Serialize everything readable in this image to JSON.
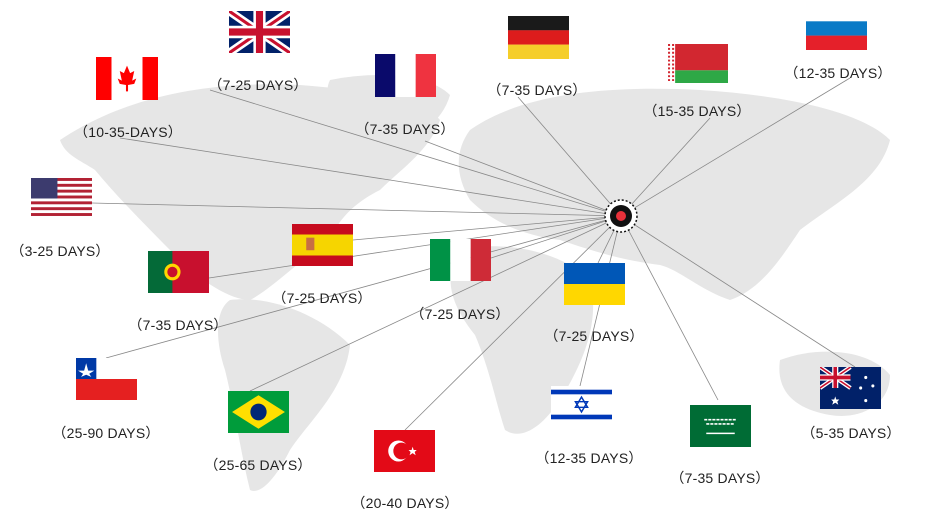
{
  "hub": {
    "icon": "origin-target-icon",
    "colors": {
      "ring": "#111111",
      "dot": "#e8313a"
    }
  },
  "map": {
    "land_color": "#e6e6e6",
    "line_color": "#888888"
  },
  "destinations": [
    {
      "flag": "uk-flag-icon",
      "days": "（7-25 DAYS）"
    },
    {
      "flag": "canada-flag-icon",
      "days": "（10-35-DAYS）"
    },
    {
      "flag": "france-flag-icon",
      "days": "（7-35 DAYS）"
    },
    {
      "flag": "germany-flag-icon",
      "days": "（7-35 DAYS）"
    },
    {
      "flag": "belarus-flag-icon",
      "days": "（15-35 DAYS）"
    },
    {
      "flag": "russia-flag-icon",
      "days": "（12-35 DAYS）"
    },
    {
      "flag": "usa-flag-icon",
      "days": "（3-25 DAYS）"
    },
    {
      "flag": "spain-flag-icon",
      "days": "（7-25 DAYS）"
    },
    {
      "flag": "portugal-flag-icon",
      "days": "（7-35 DAYS）"
    },
    {
      "flag": "italy-flag-icon",
      "days": "（7-25 DAYS）"
    },
    {
      "flag": "ukraine-flag-icon",
      "days": "（7-25 DAYS）"
    },
    {
      "flag": "chile-flag-icon",
      "days": "（25-90 DAYS）"
    },
    {
      "flag": "brazil-flag-icon",
      "days": "（25-65 DAYS）"
    },
    {
      "flag": "turkey-flag-icon",
      "days": "（20-40 DAYS）"
    },
    {
      "flag": "israel-flag-icon",
      "days": "（12-35 DAYS）"
    },
    {
      "flag": "saudi-arabia-flag-icon",
      "days": "（7-35 DAYS）"
    },
    {
      "flag": "australia-flag-icon",
      "days": "（5-35 DAYS）"
    }
  ]
}
